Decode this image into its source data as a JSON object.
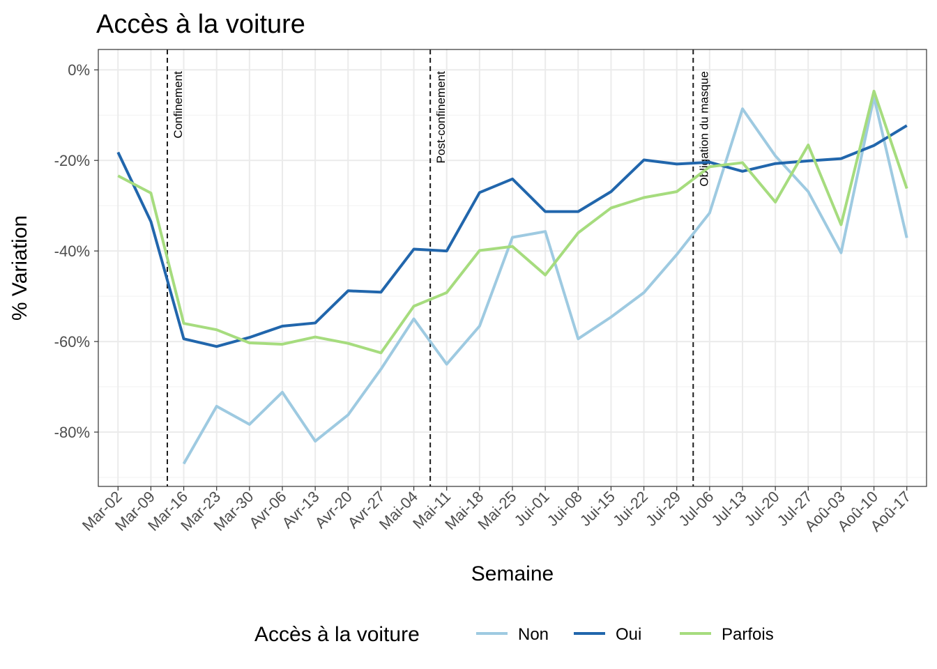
{
  "chart_data": {
    "type": "line",
    "title": "Accès à la voiture",
    "xlabel": "Semaine",
    "ylabel": "% Variation",
    "ylim": [
      -92,
      4.5
    ],
    "yticks": [
      0,
      -20,
      -40,
      -60,
      -80
    ],
    "ytick_labels": [
      "0%",
      "-20%",
      "-40%",
      "-60%",
      "-80%"
    ],
    "categories": [
      "Mar-02",
      "Mar-09",
      "Mar-16",
      "Mar-23",
      "Mar-30",
      "Avr-06",
      "Avr-13",
      "Avr-20",
      "Avr-27",
      "Mai-04",
      "Mai-11",
      "Mai-18",
      "Mai-25",
      "Jui-01",
      "Jui-08",
      "Jui-15",
      "Jui-22",
      "Jui-29",
      "Jul-06",
      "Jul-13",
      "Jul-20",
      "Jul-27",
      "Aoû-03",
      "Aoû-10",
      "Aoû-17"
    ],
    "series": [
      {
        "name": "Non",
        "color": "#9ecae1",
        "values": [
          null,
          null,
          -87,
          -74.3,
          -78.3,
          -71.2,
          -82,
          -76.2,
          -66.1,
          -55,
          -65,
          -56.6,
          -37,
          -35.7,
          -59.4,
          -54.6,
          -49.2,
          -40.8,
          -31.6,
          -8.6,
          -19,
          -26.9,
          -40.4,
          -6,
          -37.1
        ]
      },
      {
        "name": "Oui",
        "color": "#2166ac",
        "values": [
          -18.2,
          -33.5,
          -59.4,
          -61.1,
          -59.1,
          -56.6,
          -55.9,
          -48.8,
          -49.1,
          -39.6,
          -40,
          -27.1,
          -24.1,
          -31.3,
          -31.3,
          -26.9,
          -19.9,
          -20.8,
          -20.4,
          -22.4,
          -20.7,
          -20.1,
          -19.6,
          -16.7,
          -12.3
        ]
      },
      {
        "name": "Parfois",
        "color": "#a6dc7e",
        "values": [
          -23.4,
          -27.2,
          -56,
          -57.4,
          -60.3,
          -60.6,
          -59,
          -60.4,
          -62.5,
          -52.2,
          -49.2,
          -39.9,
          -39,
          -45.3,
          -36,
          -30.5,
          -28.2,
          -26.9,
          -21.4,
          -20.5,
          -29.2,
          -16.6,
          -34.2,
          -4.7,
          -26.2
        ]
      }
    ],
    "vlines": [
      {
        "position_between": [
          "Mar-09",
          "Mar-16"
        ],
        "label": "Confinement"
      },
      {
        "position_between": [
          "Mai-04",
          "Mai-11"
        ],
        "label": "Post-confinement"
      },
      {
        "position_between": [
          "Jui-29",
          "Jul-06"
        ],
        "label": "Obligation du masque"
      }
    ],
    "grid": true,
    "legend": {
      "title": "Accès à la voiture",
      "placement": "bottom"
    }
  }
}
